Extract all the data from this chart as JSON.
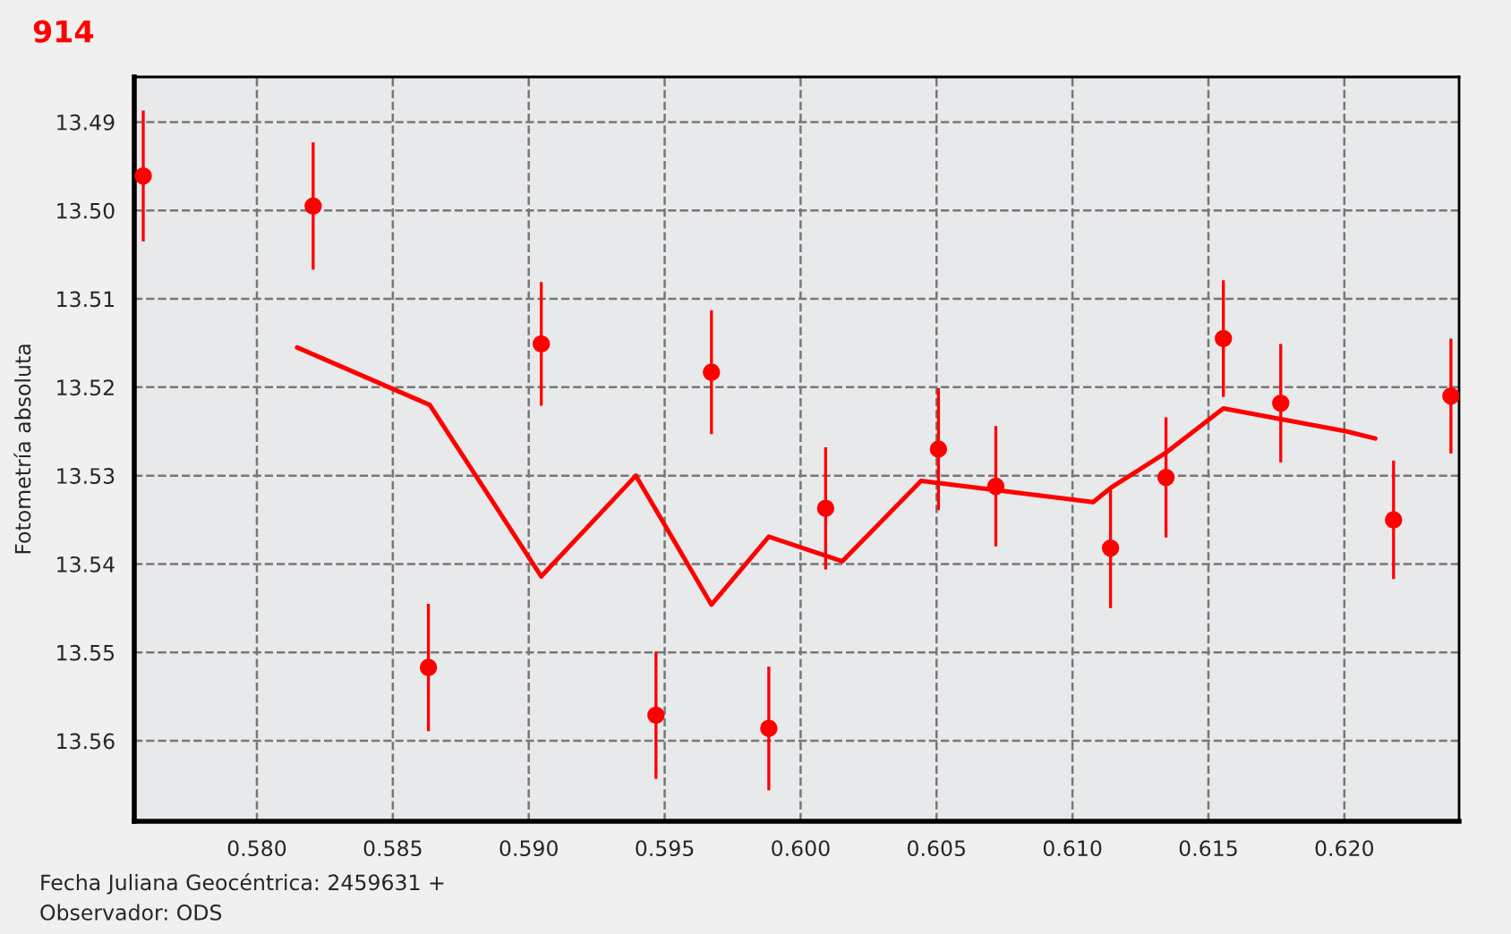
{
  "chart_data": {
    "type": "scatter",
    "title": "914",
    "xlabel": "Fecha Juliana Geocéntrica: 2459631 +",
    "ylabel": "Fotometría absoluta",
    "annotations": [
      "Observador: ODS"
    ],
    "series": [
      {
        "color": "#ff0000",
        "marker": "circle",
        "x": [
          0.57582,
          0.58207,
          0.58631,
          0.59046,
          0.59468,
          0.59672,
          0.59883,
          0.60092,
          0.60507,
          0.60718,
          0.6114,
          0.61344,
          0.61555,
          0.61766,
          0.62181,
          0.62392
        ],
        "values": [
          13.4961,
          13.4995,
          13.5517,
          13.5151,
          13.5571,
          13.5183,
          13.5586,
          13.5337,
          13.527,
          13.5312,
          13.5382,
          13.5302,
          13.5145,
          13.5218,
          13.535,
          13.521
        ],
        "errors": [
          0.0074,
          0.0072,
          0.0072,
          0.007,
          0.0072,
          0.007,
          0.007,
          0.0069,
          0.0069,
          0.0068,
          0.0068,
          0.0068,
          0.0066,
          0.0067,
          0.0067,
          0.0065
        ]
      },
      {
        "type": "line",
        "color": "#ff0000",
        "line_style": "solid",
        "x": [
          0.58148,
          0.58636,
          0.59046,
          0.59394,
          0.59672,
          0.59883,
          0.60153,
          0.60443,
          0.61076,
          0.6114,
          0.61344,
          0.61555,
          0.62009,
          0.62114
        ],
        "values": [
          13.5155,
          13.522,
          13.5414,
          13.53,
          13.5446,
          13.5369,
          13.5397,
          13.5306,
          13.533,
          13.5314,
          13.5274,
          13.5224,
          13.525,
          13.5258
        ]
      }
    ],
    "xlim": [
      0.57549,
      0.62422
    ],
    "ylim": [
      13.5691,
      13.4849
    ],
    "xticks": [
      {
        "value": 0.58,
        "label": "0.580"
      },
      {
        "value": 0.585,
        "label": "0.585"
      },
      {
        "value": 0.59,
        "label": "0.590"
      },
      {
        "value": 0.595,
        "label": "0.595"
      },
      {
        "value": 0.6,
        "label": "0.600"
      },
      {
        "value": 0.605,
        "label": "0.605"
      },
      {
        "value": 0.61,
        "label": "0.610"
      },
      {
        "value": 0.615,
        "label": "0.615"
      },
      {
        "value": 0.62,
        "label": "0.620"
      }
    ],
    "yticks": [
      13.49,
      {
        "value": 13.5,
        "label": "13.50"
      },
      13.51,
      13.52,
      13.53,
      13.54,
      13.55,
      13.56
    ],
    "grid": true,
    "legend": false
  }
}
